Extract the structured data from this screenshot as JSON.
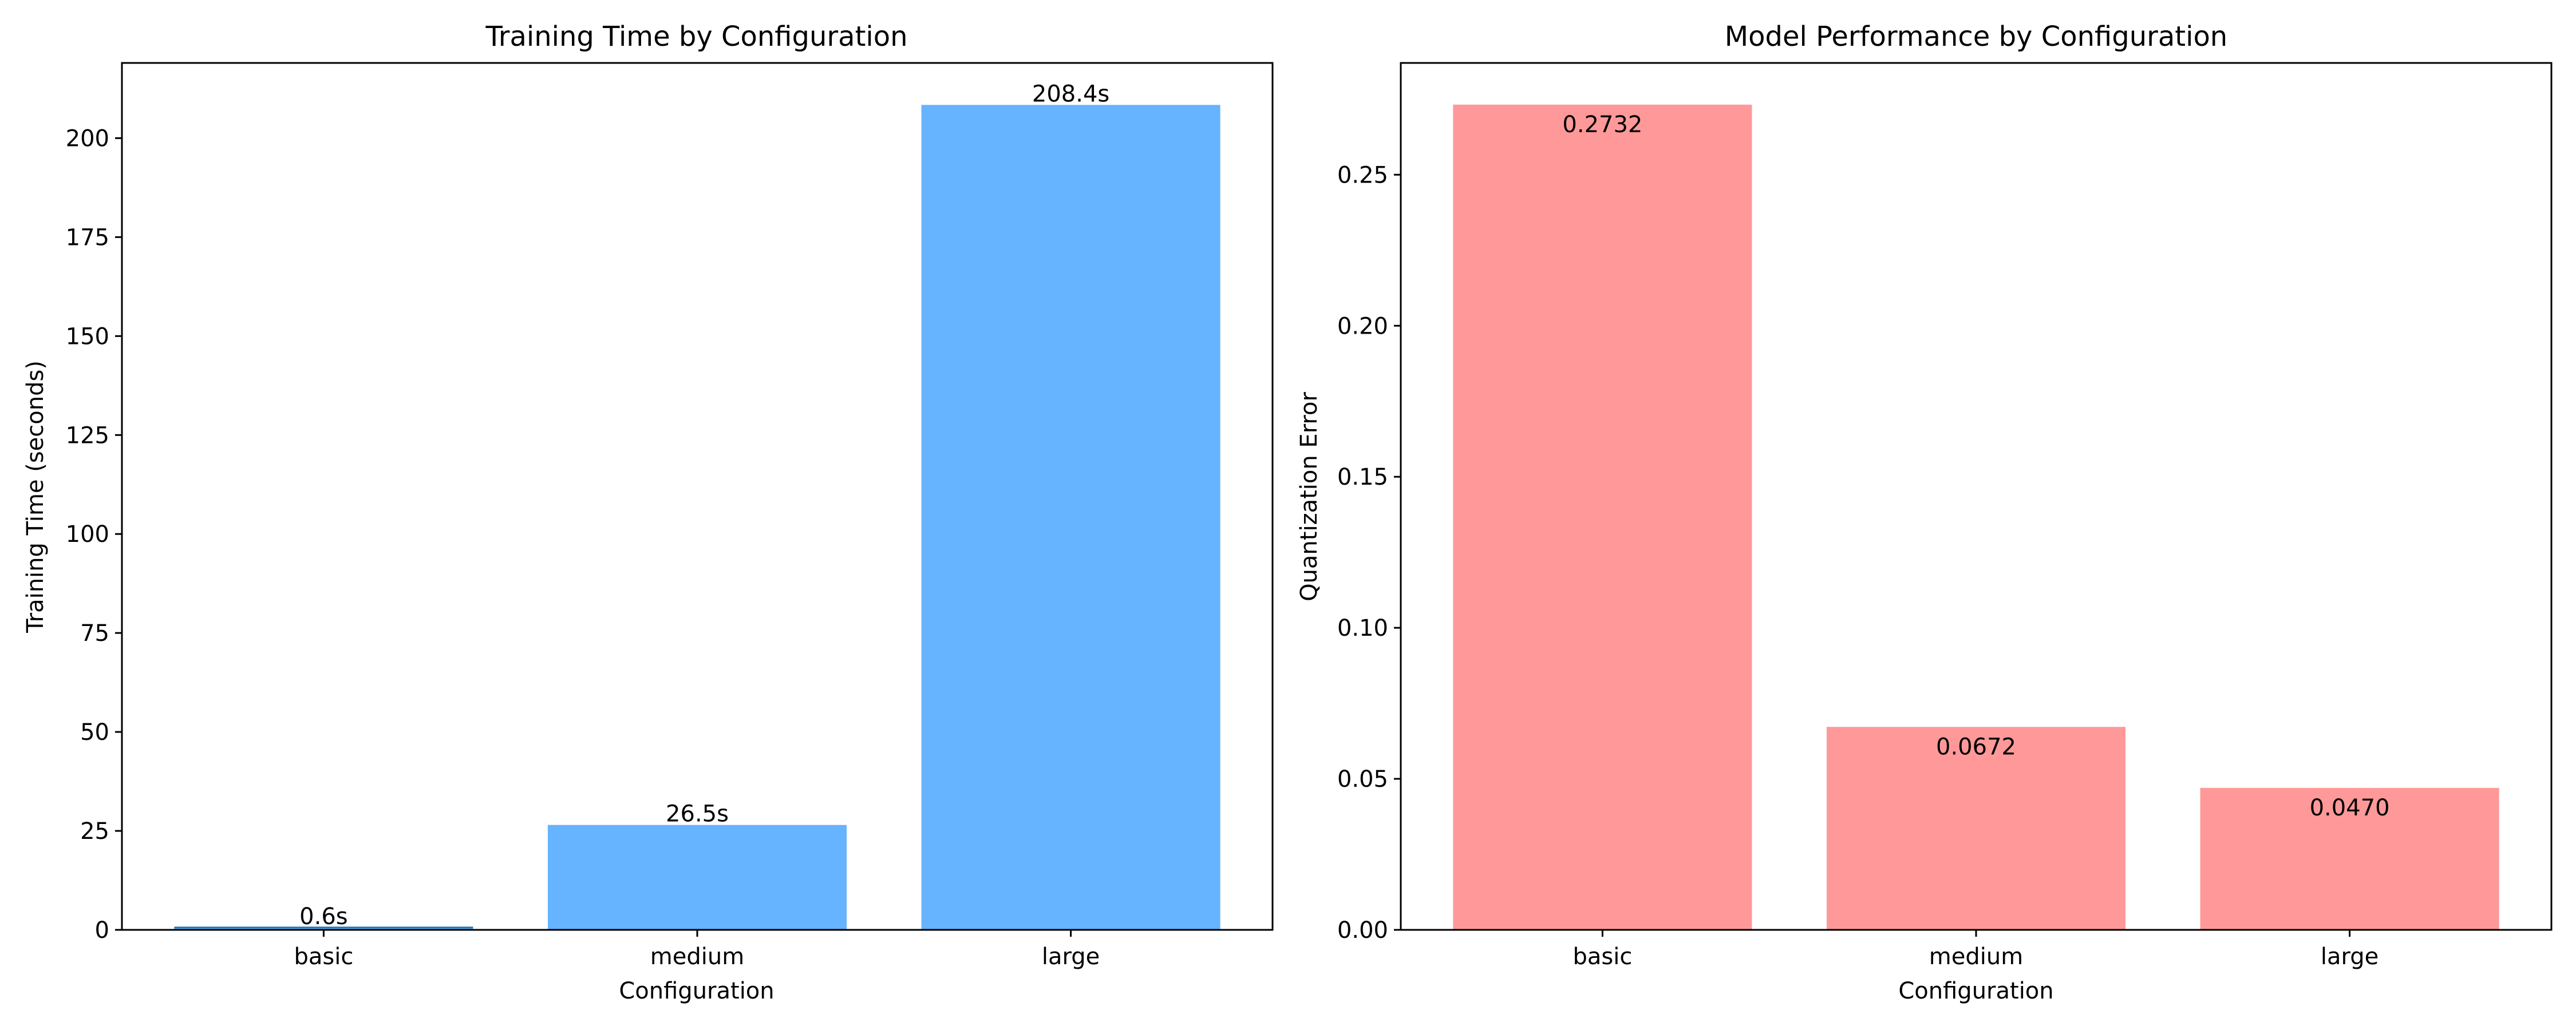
{
  "chart_data": [
    {
      "type": "bar",
      "title": "Training Time by Configuration",
      "xlabel": "Configuration",
      "ylabel": "Training Time (seconds)",
      "categories": [
        "basic",
        "medium",
        "large"
      ],
      "values": [
        0.6,
        26.5,
        208.4
      ],
      "value_labels": [
        "0.6s",
        "26.5s",
        "208.4s"
      ],
      "ylim": [
        0,
        219
      ],
      "yticks": [
        0,
        25,
        50,
        75,
        100,
        125,
        150,
        175,
        200
      ],
      "ytick_labels": [
        "0",
        "25",
        "50",
        "75",
        "100",
        "125",
        "150",
        "175",
        "200"
      ],
      "bar_color": "#66b3ff",
      "label_position": "above",
      "grid": false,
      "legend": "none"
    },
    {
      "type": "bar",
      "title": "Model Performance by Configuration",
      "xlabel": "Configuration",
      "ylabel": "Quantization Error",
      "categories": [
        "basic",
        "medium",
        "large"
      ],
      "values": [
        0.2732,
        0.0672,
        0.047
      ],
      "value_labels": [
        "0.2732",
        "0.0672",
        "0.0470"
      ],
      "ylim": [
        0,
        0.287
      ],
      "yticks": [
        0,
        0.05,
        0.1,
        0.15,
        0.2,
        0.25
      ],
      "ytick_labels": [
        "0.00",
        "0.05",
        "0.10",
        "0.15",
        "0.20",
        "0.25"
      ],
      "bar_color": "#ff9999",
      "label_position": "inside-top",
      "grid": false,
      "legend": "none"
    }
  ]
}
